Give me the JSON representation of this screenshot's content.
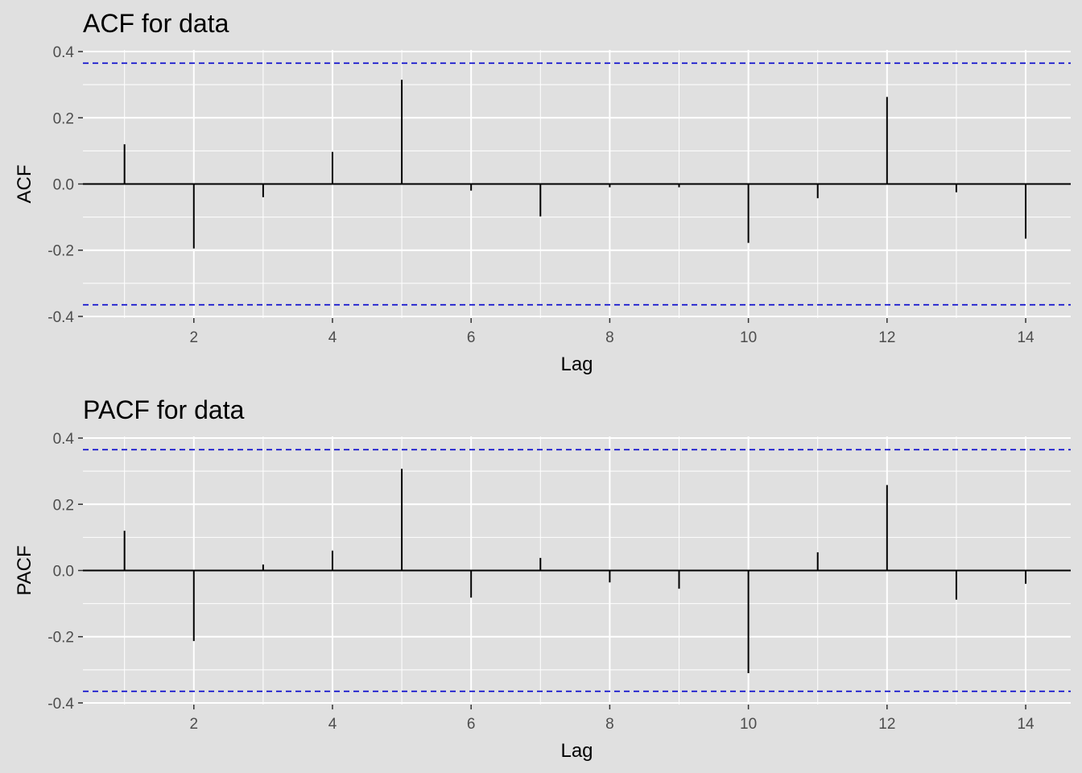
{
  "chart_data": [
    {
      "type": "bar",
      "title": "ACF for data",
      "xlabel": "Lag",
      "ylabel": "ACF",
      "xlim": [
        0.4,
        14.65
      ],
      "ylim": [
        -0.405,
        0.405
      ],
      "x_ticks": [
        "2",
        "4",
        "6",
        "8",
        "10",
        "12",
        "14"
      ],
      "y_ticks": [
        "-0.4",
        "-0.2",
        "0.0",
        "0.2",
        "0.4"
      ],
      "grid": true,
      "confidence_bound": 0.365,
      "x": [
        1,
        2,
        3,
        4,
        5,
        6,
        7,
        8,
        9,
        10,
        11,
        12,
        13,
        14
      ],
      "values": [
        0.12,
        -0.195,
        -0.04,
        0.097,
        0.315,
        -0.02,
        -0.098,
        -0.01,
        -0.01,
        -0.178,
        -0.043,
        0.263,
        -0.025,
        -0.165
      ]
    },
    {
      "type": "bar",
      "title": "PACF for data",
      "xlabel": "Lag",
      "ylabel": "PACF",
      "xlim": [
        0.4,
        14.65
      ],
      "ylim": [
        -0.405,
        0.405
      ],
      "x_ticks": [
        "2",
        "4",
        "6",
        "8",
        "10",
        "12",
        "14"
      ],
      "y_ticks": [
        "-0.4",
        "-0.2",
        "0.0",
        "0.2",
        "0.4"
      ],
      "grid": true,
      "confidence_bound": 0.365,
      "x": [
        1,
        2,
        3,
        4,
        5,
        6,
        7,
        8,
        9,
        10,
        11,
        12,
        13,
        14
      ],
      "values": [
        0.12,
        -0.213,
        0.018,
        0.06,
        0.307,
        -0.082,
        0.038,
        -0.036,
        -0.055,
        -0.31,
        0.055,
        0.258,
        -0.088,
        -0.04
      ]
    }
  ],
  "colors": {
    "panel_background": "#e0e0e0",
    "grid": "#ffffff",
    "bar": "#000000",
    "confidence_line": "#0000cc",
    "tick_text": "#4d4d4d",
    "tick_mark": "#333333"
  }
}
